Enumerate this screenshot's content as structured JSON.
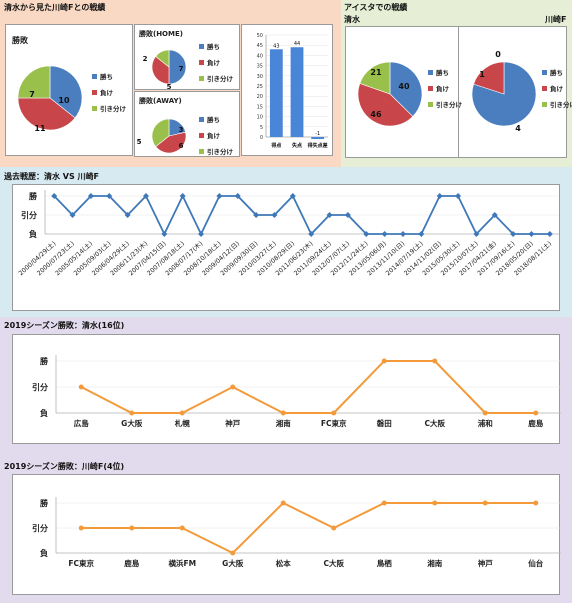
{
  "s1": {
    "title": "清水から見た川崎Fとの戦績"
  },
  "s2": {
    "title": "アイスタでの戦績",
    "left": "清水",
    "right": "川崎F"
  },
  "s3": {
    "title": "過去戦歴：清水 VS 川崎F"
  },
  "s4": {
    "title": "2019シーズン勝敗：清水(16位)"
  },
  "s5": {
    "title": "2019シーズン勝敗：川崎F(4位)"
  },
  "legend": {
    "win": "勝ち",
    "lose": "負け",
    "draw": "引き分け"
  },
  "axis_labels": {
    "win": "勝",
    "draw": "引分",
    "lose": "負"
  },
  "colors": {
    "win": "#4a7ebf",
    "lose": "#c8464a",
    "draw": "#9ac04c",
    "bar": "#4a86d8",
    "line_blue": "#3f78b8",
    "line_orange": "#f39a3a"
  },
  "chart_data": [
    {
      "id": "pie-total",
      "type": "pie",
      "title": "勝敗",
      "labels": [
        "勝ち",
        "負け",
        "引き分け"
      ],
      "values": [
        10,
        11,
        7
      ]
    },
    {
      "id": "pie-home",
      "type": "pie",
      "title": "勝敗(HOME)",
      "labels": [
        "勝ち",
        "負け",
        "引き分け"
      ],
      "values": [
        7,
        5,
        2
      ]
    },
    {
      "id": "pie-away",
      "type": "pie",
      "title": "勝敗(AWAY)",
      "labels": [
        "勝ち",
        "負け",
        "引き分け"
      ],
      "values": [
        3,
        6,
        5
      ]
    },
    {
      "id": "bar-goals",
      "type": "bar",
      "categories": [
        "得点",
        "失点",
        "得失点差"
      ],
      "values": [
        43,
        44,
        -1
      ],
      "ylim": [
        0,
        50
      ]
    },
    {
      "id": "pie-aista-shimizu",
      "type": "pie",
      "labels": [
        "勝ち",
        "負け",
        "引き分け"
      ],
      "values": [
        40,
        46,
        21
      ]
    },
    {
      "id": "pie-aista-kawasaki",
      "type": "pie",
      "labels": [
        "勝ち",
        "負け",
        "引き分け"
      ],
      "values": [
        4,
        1,
        0
      ]
    },
    {
      "id": "line-history",
      "type": "line",
      "categories": [
        "2000/04/29(土)",
        "2000/07/23(土)",
        "2005/05/14(土)",
        "2005/09/03(土)",
        "2006/04/29(土)",
        "2006/11/23(木)",
        "2007/04/15(日)",
        "2007/08/18(土)",
        "2008/07/17(木)",
        "2008/10/18(土)",
        "2009/04/12(日)",
        "2009/09/30(日)",
        "2010/03/27(土)",
        "2010/08/29(日)",
        "2011/06/23(木)",
        "2011/09/24(土)",
        "2012/07/07(土)",
        "2012/11/24(土)",
        "2013/05/06(月)",
        "2013/11/10(日)",
        "2014/07/19(土)",
        "2014/11/02(日)",
        "2015/05/30(土)",
        "2015/10/07(土)",
        "2017/04/21(金)",
        "2017/09/16(土)",
        "2018/05/20(日)",
        "2018/08/11(土)"
      ],
      "values": [
        2,
        1,
        2,
        2,
        1,
        2,
        0,
        2,
        0,
        2,
        2,
        1,
        1,
        2,
        0,
        1,
        1,
        0,
        0,
        0,
        0,
        2,
        2,
        0,
        1,
        0,
        0,
        0
      ],
      "yticks": [
        "負",
        "引分",
        "勝"
      ]
    },
    {
      "id": "line-shimizu",
      "type": "line",
      "categories": [
        "広島",
        "G大阪",
        "札幌",
        "神戸",
        "湘南",
        "FC東京",
        "磐田",
        "C大阪",
        "浦和",
        "鹿島"
      ],
      "values": [
        1,
        0,
        0,
        1,
        0,
        0,
        2,
        2,
        0,
        0
      ],
      "yticks": [
        "負",
        "引分",
        "勝"
      ]
    },
    {
      "id": "line-kawasaki",
      "type": "line",
      "categories": [
        "FC東京",
        "鹿島",
        "横浜FM",
        "G大阪",
        "松本",
        "C大阪",
        "鳥栖",
        "湘南",
        "神戸",
        "仙台"
      ],
      "values": [
        1,
        1,
        1,
        0,
        2,
        1,
        2,
        2,
        2,
        2
      ],
      "yticks": [
        "負",
        "引分",
        "勝"
      ]
    }
  ]
}
